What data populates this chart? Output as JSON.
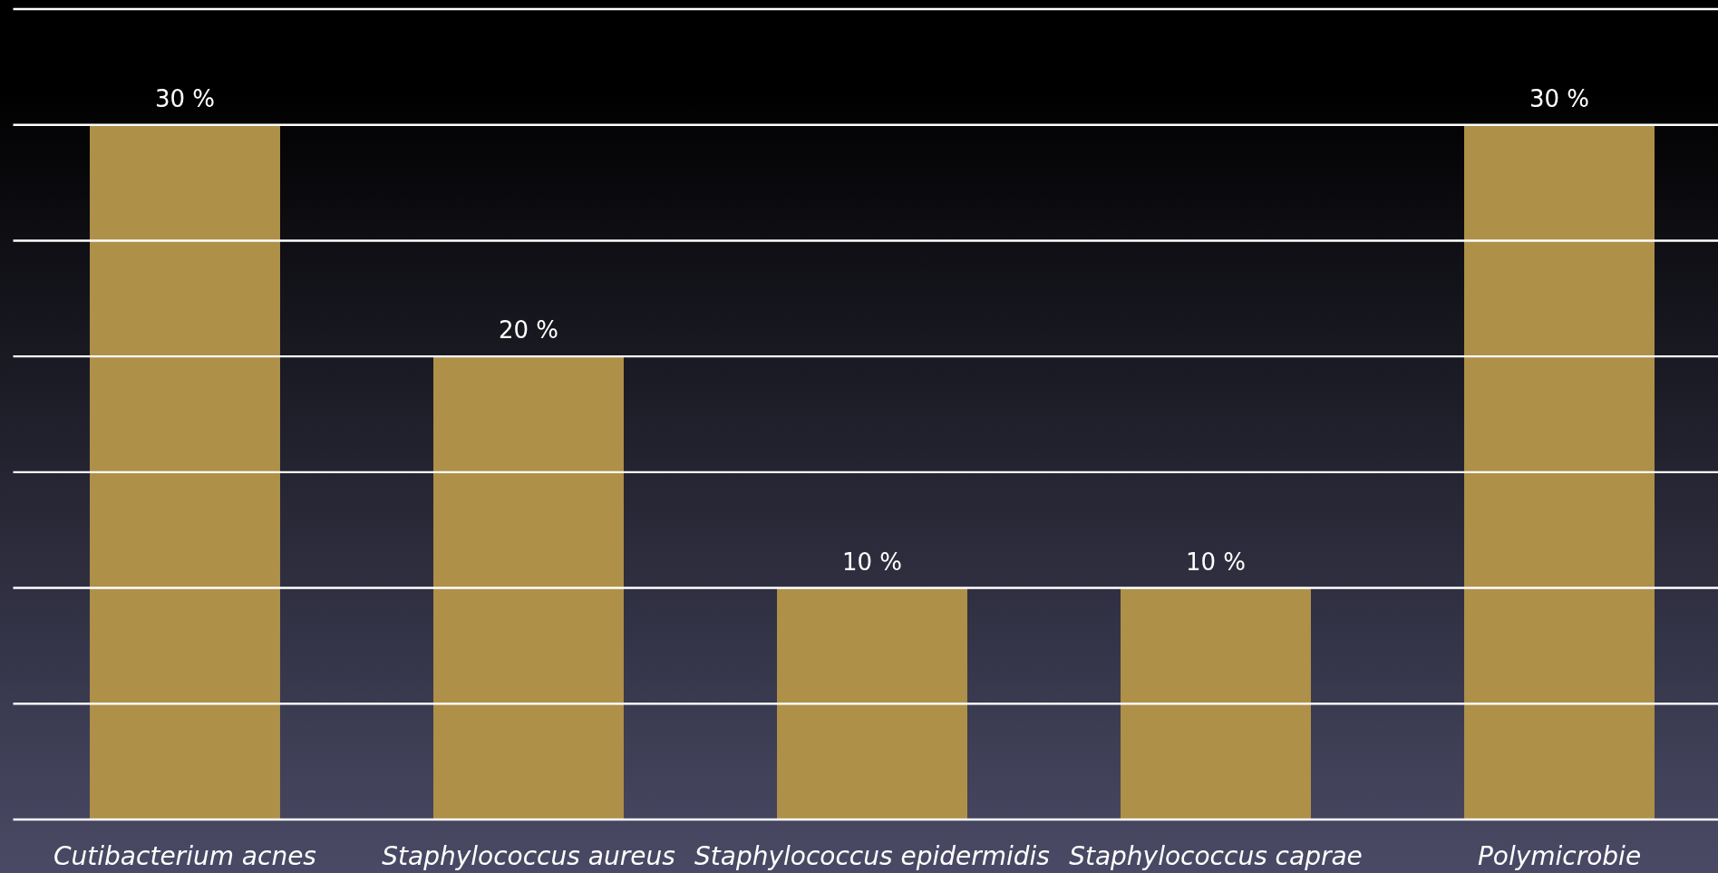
{
  "chart_data": {
    "type": "bar",
    "categories": [
      "Cutibacterium acnes",
      "Staphylococcus aureus",
      "Staphylococcus epidermidis",
      "Staphylococcus caprae",
      "Polymicrobie"
    ],
    "values": [
      30,
      20,
      10,
      10,
      30
    ],
    "value_labels": [
      "30 %",
      "20 %",
      "10 %",
      "10 %",
      "30 %"
    ],
    "color": "#ae9048",
    "ylim": [
      0,
      35
    ],
    "yticks": [
      {
        "value": 0,
        "label": null
      },
      {
        "value": 5,
        "label": null
      },
      {
        "value": 10,
        "label": null
      },
      {
        "value": 15,
        "label": null
      },
      {
        "value": 20,
        "label": null
      },
      {
        "value": 25,
        "label": null
      },
      {
        "value": 30,
        "label": null
      },
      {
        "value": 35,
        "label": null
      }
    ],
    "tick_labels": "x",
    "grid": "y"
  }
}
